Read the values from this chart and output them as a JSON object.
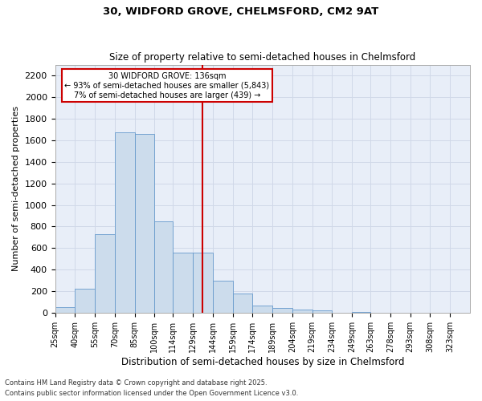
{
  "title1": "30, WIDFORD GROVE, CHELMSFORD, CM2 9AT",
  "title2": "Size of property relative to semi-detached houses in Chelmsford",
  "xlabel": "Distribution of semi-detached houses by size in Chelmsford",
  "ylabel": "Number of semi-detached properties",
  "footnote1": "Contains HM Land Registry data © Crown copyright and database right 2025.",
  "footnote2": "Contains public sector information licensed under the Open Government Licence v3.0.",
  "annotation_line1": "30 WIDFORD GROVE: 136sqm",
  "annotation_line2": "← 93% of semi-detached houses are smaller (5,843)",
  "annotation_line3": "7% of semi-detached houses are larger (439) →",
  "property_size": 136,
  "bar_color": "#ccdcec",
  "bar_edge_color": "#6699cc",
  "vline_color": "#cc0000",
  "annotation_box_color": "#cc0000",
  "grid_color": "#d0d8e8",
  "background_color": "#e8eef8",
  "categories": [
    "25sqm",
    "40sqm",
    "55sqm",
    "70sqm",
    "85sqm",
    "100sqm",
    "114sqm",
    "129sqm",
    "144sqm",
    "159sqm",
    "174sqm",
    "189sqm",
    "204sqm",
    "219sqm",
    "234sqm",
    "249sqm",
    "263sqm",
    "278sqm",
    "293sqm",
    "308sqm",
    "323sqm"
  ],
  "bin_edges": [
    25,
    40,
    55,
    70,
    85,
    100,
    114,
    129,
    144,
    159,
    174,
    189,
    204,
    219,
    234,
    249,
    263,
    278,
    293,
    308,
    323,
    338
  ],
  "values": [
    50,
    225,
    730,
    1675,
    1660,
    845,
    555,
    555,
    295,
    175,
    65,
    40,
    30,
    20,
    0,
    10,
    0,
    0,
    0,
    0,
    0
  ],
  "ylim": [
    0,
    2300
  ],
  "yticks": [
    0,
    200,
    400,
    600,
    800,
    1000,
    1200,
    1400,
    1600,
    1800,
    2000,
    2200
  ]
}
